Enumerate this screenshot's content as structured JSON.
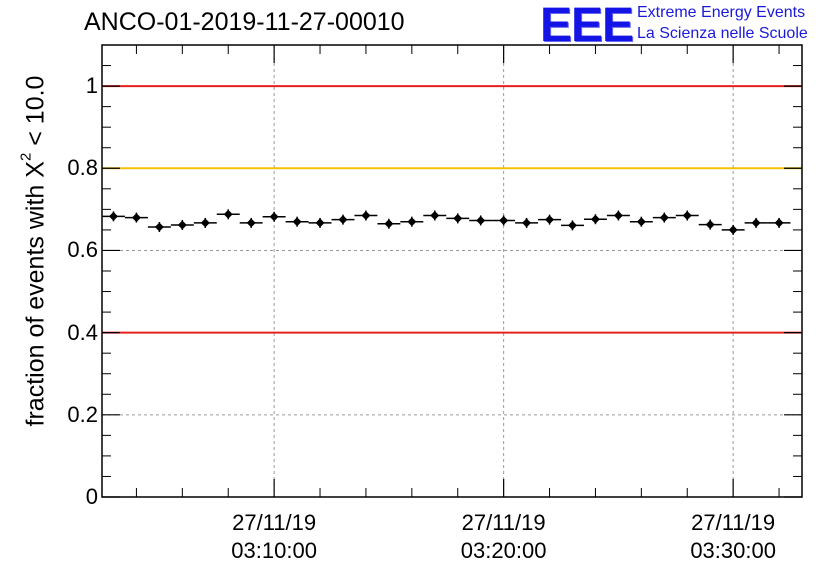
{
  "chart_data": {
    "type": "scatter",
    "title": "ANCO-01-2019-11-27-00010",
    "xlabel": "",
    "ylabel": "fraction of events with",
    "ylabel_symbol": "X",
    "ylabel_superscript": "2",
    "ylabel_suffix": " < 10.0",
    "ylim": [
      0,
      1.1
    ],
    "xlim_minutes": [
      0,
      30.5
    ],
    "grid": true,
    "yticks": [
      {
        "value": 0,
        "label": "0"
      },
      {
        "value": 0.2,
        "label": "0.2"
      },
      {
        "value": 0.4,
        "label": "0.4"
      },
      {
        "value": 0.6,
        "label": "0.6"
      },
      {
        "value": 0.8,
        "label": "0.8"
      },
      {
        "value": 1,
        "label": "1"
      }
    ],
    "xticks": [
      {
        "minute": 7.5,
        "date": "27/11/19",
        "time": "03:10:00"
      },
      {
        "minute": 17.5,
        "date": "27/11/19",
        "time": "03:20:00"
      },
      {
        "minute": 27.5,
        "date": "27/11/19",
        "time": "03:30:00"
      }
    ],
    "reference_lines": [
      {
        "y": 1.0,
        "color": "#e8201c"
      },
      {
        "y": 0.8,
        "color": "#f5c000"
      },
      {
        "y": 0.4,
        "color": "#e8201c"
      }
    ],
    "series": [
      {
        "name": "fraction",
        "bin_width_minutes": 1,
        "x_minutes": [
          0.5,
          1.5,
          2.5,
          3.5,
          4.5,
          5.5,
          6.5,
          7.5,
          8.5,
          9.5,
          10.5,
          11.5,
          12.5,
          13.5,
          14.5,
          15.5,
          16.5,
          17.5,
          18.5,
          19.5,
          20.5,
          21.5,
          22.5,
          23.5,
          24.5,
          25.5,
          26.5,
          27.5,
          28.5,
          29.5
        ],
        "values": [
          0.683,
          0.68,
          0.657,
          0.662,
          0.667,
          0.688,
          0.667,
          0.682,
          0.67,
          0.667,
          0.675,
          0.685,
          0.665,
          0.67,
          0.685,
          0.678,
          0.673,
          0.673,
          0.667,
          0.675,
          0.661,
          0.676,
          0.685,
          0.67,
          0.68,
          0.685,
          0.663,
          0.65,
          0.667,
          0.667
        ]
      }
    ]
  },
  "logo": {
    "mark": "EEE",
    "line1": "Extreme Energy Events",
    "line2": "La Scienza nelle Scuole",
    "color": "#1414e6"
  }
}
